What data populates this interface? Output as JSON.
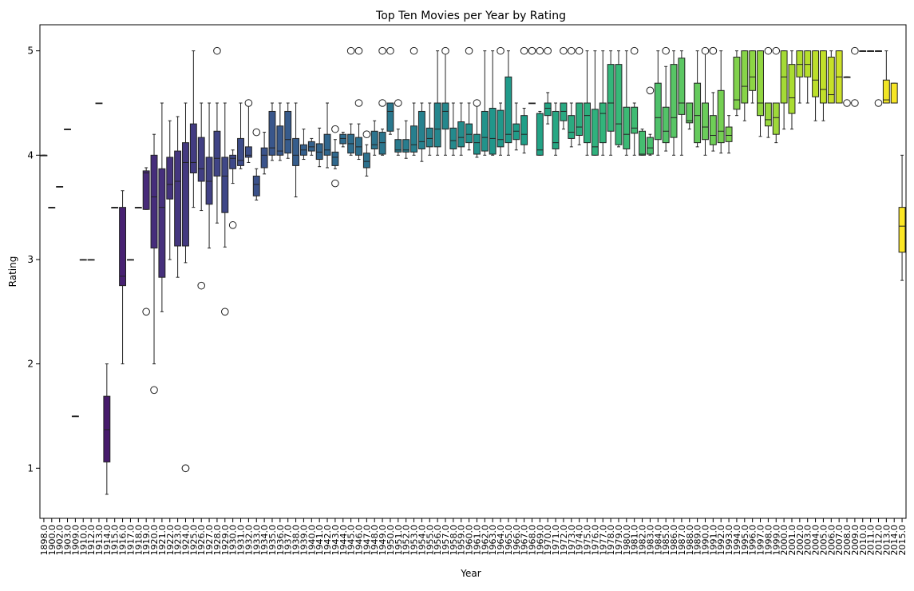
{
  "chart_data": {
    "type": "box",
    "title": "Top Ten Movies per Year by Rating",
    "xlabel": "Year",
    "ylabel": "Rating",
    "ylim": [
      0.52,
      5.25
    ],
    "yticks": [
      1,
      2,
      3,
      4,
      5
    ],
    "palette": "viridis",
    "categories": [
      "1898.0",
      "1900.0",
      "1902.0",
      "1903.0",
      "1909.0",
      "1910.0",
      "1912.0",
      "1913.0",
      "1914.0",
      "1915.0",
      "1916.0",
      "1917.0",
      "1918.0",
      "1919.0",
      "1920.0",
      "1921.0",
      "1922.0",
      "1923.0",
      "1924.0",
      "1925.0",
      "1926.0",
      "1927.0",
      "1928.0",
      "1929.0",
      "1930.0",
      "1931.0",
      "1932.0",
      "1933.0",
      "1934.0",
      "1935.0",
      "1936.0",
      "1937.0",
      "1938.0",
      "1939.0",
      "1940.0",
      "1941.0",
      "1942.0",
      "1943.0",
      "1944.0",
      "1945.0",
      "1946.0",
      "1947.0",
      "1948.0",
      "1949.0",
      "1950.0",
      "1951.0",
      "1952.0",
      "1953.0",
      "1954.0",
      "1955.0",
      "1956.0",
      "1957.0",
      "1958.0",
      "1959.0",
      "1960.0",
      "1961.0",
      "1962.0",
      "1963.0",
      "1964.0",
      "1965.0",
      "1966.0",
      "1967.0",
      "1968.0",
      "1969.0",
      "1970.0",
      "1971.0",
      "1972.0",
      "1973.0",
      "1974.0",
      "1975.0",
      "1976.0",
      "1977.0",
      "1978.0",
      "1979.0",
      "1980.0",
      "1981.0",
      "1982.0",
      "1983.0",
      "1984.0",
      "1985.0",
      "1986.0",
      "1987.0",
      "1988.0",
      "1989.0",
      "1990.0",
      "1991.0",
      "1992.0",
      "1993.0",
      "1994.0",
      "1995.0",
      "1996.0",
      "1997.0",
      "1998.0",
      "1999.0",
      "2000.0",
      "2001.0",
      "2002.0",
      "2003.0",
      "2004.0",
      "2005.0",
      "2006.0",
      "2007.0",
      "2008.0",
      "2009.0",
      "2010.0",
      "2011.0",
      "2012.0",
      "2013.0",
      "2014.0",
      "2015.0"
    ],
    "boxes": [
      {
        "q1": 4.0,
        "med": 4.0,
        "q3": 4.0,
        "wlo": 4.0,
        "whi": 4.0,
        "fliers": []
      },
      {
        "q1": 3.5,
        "med": 3.5,
        "q3": 3.5,
        "wlo": 3.5,
        "whi": 3.5,
        "fliers": []
      },
      {
        "q1": 3.7,
        "med": 3.7,
        "q3": 3.7,
        "wlo": 3.7,
        "whi": 3.7,
        "fliers": []
      },
      {
        "q1": 4.25,
        "med": 4.25,
        "q3": 4.25,
        "wlo": 4.25,
        "whi": 4.25,
        "fliers": []
      },
      {
        "q1": 1.5,
        "med": 1.5,
        "q3": 1.5,
        "wlo": 1.5,
        "whi": 1.5,
        "fliers": []
      },
      {
        "q1": 3.0,
        "med": 3.0,
        "q3": 3.0,
        "wlo": 3.0,
        "whi": 3.0,
        "fliers": []
      },
      {
        "q1": 3.0,
        "med": 3.0,
        "q3": 3.0,
        "wlo": 3.0,
        "whi": 3.0,
        "fliers": []
      },
      {
        "q1": 4.5,
        "med": 4.5,
        "q3": 4.5,
        "wlo": 4.5,
        "whi": 4.5,
        "fliers": []
      },
      {
        "q1": 1.06,
        "med": 1.37,
        "q3": 1.69,
        "wlo": 0.75,
        "whi": 2.0,
        "fliers": []
      },
      {
        "q1": 3.5,
        "med": 3.5,
        "q3": 3.5,
        "wlo": 3.5,
        "whi": 3.5,
        "fliers": []
      },
      {
        "q1": 2.75,
        "med": 2.84,
        "q3": 3.5,
        "wlo": 2.0,
        "whi": 3.66,
        "fliers": []
      },
      {
        "q1": 3.0,
        "med": 3.0,
        "q3": 3.0,
        "wlo": 3.0,
        "whi": 3.0,
        "fliers": []
      },
      {
        "q1": 3.5,
        "med": 3.5,
        "q3": 3.5,
        "wlo": 3.5,
        "whi": 3.5,
        "fliers": []
      },
      {
        "q1": 3.48,
        "med": 3.83,
        "q3": 3.85,
        "wlo": 3.48,
        "whi": 3.88,
        "fliers": [
          2.5
        ]
      },
      {
        "q1": 3.11,
        "med": 3.6,
        "q3": 4.0,
        "wlo": 2.0,
        "whi": 4.2,
        "fliers": [
          1.75
        ]
      },
      {
        "q1": 2.83,
        "med": 3.5,
        "q3": 3.87,
        "wlo": 2.5,
        "whi": 4.5,
        "fliers": []
      },
      {
        "q1": 3.58,
        "med": 3.72,
        "q3": 3.98,
        "wlo": 3.0,
        "whi": 4.33,
        "fliers": []
      },
      {
        "q1": 3.13,
        "med": 3.75,
        "q3": 4.04,
        "wlo": 2.83,
        "whi": 4.37,
        "fliers": []
      },
      {
        "q1": 3.13,
        "med": 3.93,
        "q3": 4.12,
        "wlo": 2.97,
        "whi": 4.5,
        "fliers": [
          1.0,
          1.0
        ]
      },
      {
        "q1": 3.83,
        "med": 3.93,
        "q3": 4.3,
        "wlo": 3.5,
        "whi": 5.0,
        "fliers": []
      },
      {
        "q1": 3.75,
        "med": 3.87,
        "q3": 4.17,
        "wlo": 3.47,
        "whi": 4.5,
        "fliers": [
          2.75
        ]
      },
      {
        "q1": 3.53,
        "med": 3.75,
        "q3": 3.98,
        "wlo": 3.11,
        "whi": 4.5,
        "fliers": []
      },
      {
        "q1": 3.8,
        "med": 3.97,
        "q3": 4.23,
        "wlo": 3.35,
        "whi": 4.5,
        "fliers": [
          5.0
        ]
      },
      {
        "q1": 3.45,
        "med": 3.8,
        "q3": 3.98,
        "wlo": 3.12,
        "whi": 4.5,
        "fliers": [
          2.5
        ]
      },
      {
        "q1": 3.87,
        "med": 3.97,
        "q3": 4.0,
        "wlo": 3.73,
        "whi": 4.05,
        "fliers": [
          3.33
        ]
      },
      {
        "q1": 3.9,
        "med": 3.95,
        "q3": 4.16,
        "wlo": 3.87,
        "whi": 4.5,
        "fliers": []
      },
      {
        "q1": 3.98,
        "med": 4.0,
        "q3": 4.08,
        "wlo": 3.93,
        "whi": 4.5,
        "fliers": [
          4.5
        ]
      },
      {
        "q1": 3.61,
        "med": 3.72,
        "q3": 3.8,
        "wlo": 3.57,
        "whi": 3.87,
        "fliers": [
          4.22
        ]
      },
      {
        "q1": 3.88,
        "med": 4.0,
        "q3": 4.07,
        "wlo": 3.82,
        "whi": 4.22,
        "fliers": []
      },
      {
        "q1": 4.0,
        "med": 4.07,
        "q3": 4.42,
        "wlo": 3.95,
        "whi": 4.5,
        "fliers": []
      },
      {
        "q1": 4.0,
        "med": 4.04,
        "q3": 4.28,
        "wlo": 3.95,
        "whi": 4.5,
        "fliers": []
      },
      {
        "q1": 4.02,
        "med": 4.15,
        "q3": 4.42,
        "wlo": 3.97,
        "whi": 4.5,
        "fliers": []
      },
      {
        "q1": 3.9,
        "med": 4.0,
        "q3": 4.16,
        "wlo": 3.6,
        "whi": 4.5,
        "fliers": []
      },
      {
        "q1": 4.0,
        "med": 4.05,
        "q3": 4.1,
        "wlo": 3.96,
        "whi": 4.25,
        "fliers": []
      },
      {
        "q1": 4.04,
        "med": 4.08,
        "q3": 4.13,
        "wlo": 4.0,
        "whi": 4.16,
        "fliers": []
      },
      {
        "q1": 3.96,
        "med": 4.03,
        "q3": 4.11,
        "wlo": 3.89,
        "whi": 4.26,
        "fliers": []
      },
      {
        "q1": 4.0,
        "med": 4.05,
        "q3": 4.2,
        "wlo": 3.88,
        "whi": 4.5,
        "fliers": []
      },
      {
        "q1": 3.9,
        "med": 3.98,
        "q3": 4.03,
        "wlo": 3.87,
        "whi": 4.15,
        "fliers": [
          3.73,
          4.25
        ]
      },
      {
        "q1": 4.11,
        "med": 4.16,
        "q3": 4.2,
        "wlo": 4.08,
        "whi": 4.22,
        "fliers": []
      },
      {
        "q1": 4.02,
        "med": 4.11,
        "q3": 4.2,
        "wlo": 4.0,
        "whi": 4.3,
        "fliers": [
          5.0
        ]
      },
      {
        "q1": 4.0,
        "med": 4.08,
        "q3": 4.17,
        "wlo": 3.96,
        "whi": 4.3,
        "fliers": [
          4.5,
          5.0
        ]
      },
      {
        "q1": 3.88,
        "med": 3.94,
        "q3": 4.02,
        "wlo": 3.8,
        "whi": 4.1,
        "fliers": [
          4.2
        ]
      },
      {
        "q1": 4.06,
        "med": 4.1,
        "q3": 4.23,
        "wlo": 4.0,
        "whi": 4.33,
        "fliers": []
      },
      {
        "q1": 4.01,
        "med": 4.12,
        "q3": 4.22,
        "wlo": 4.0,
        "whi": 4.25,
        "fliers": [
          4.5,
          5.0
        ]
      },
      {
        "q1": 4.23,
        "med": 4.42,
        "q3": 4.5,
        "wlo": 4.2,
        "whi": 4.5,
        "fliers": [
          5.0
        ]
      },
      {
        "q1": 4.03,
        "med": 4.05,
        "q3": 4.15,
        "wlo": 4.0,
        "whi": 4.25,
        "fliers": [
          4.5
        ]
      },
      {
        "q1": 4.03,
        "med": 4.05,
        "q3": 4.15,
        "wlo": 3.97,
        "whi": 4.33,
        "fliers": []
      },
      {
        "q1": 4.03,
        "med": 4.1,
        "q3": 4.28,
        "wlo": 4.0,
        "whi": 4.5,
        "fliers": [
          5.0
        ]
      },
      {
        "q1": 4.06,
        "med": 4.13,
        "q3": 4.42,
        "wlo": 3.94,
        "whi": 4.5,
        "fliers": []
      },
      {
        "q1": 4.08,
        "med": 4.16,
        "q3": 4.26,
        "wlo": 4.0,
        "whi": 4.5,
        "fliers": []
      },
      {
        "q1": 4.08,
        "med": 4.25,
        "q3": 4.5,
        "wlo": 4.0,
        "whi": 5.0,
        "fliers": []
      },
      {
        "q1": 4.25,
        "med": 4.42,
        "q3": 4.5,
        "wlo": 4.0,
        "whi": 5.0,
        "fliers": [
          5.0
        ]
      },
      {
        "q1": 4.06,
        "med": 4.14,
        "q3": 4.26,
        "wlo": 4.0,
        "whi": 4.5,
        "fliers": []
      },
      {
        "q1": 4.08,
        "med": 4.17,
        "q3": 4.32,
        "wlo": 4.0,
        "whi": 4.5,
        "fliers": []
      },
      {
        "q1": 4.12,
        "med": 4.2,
        "q3": 4.3,
        "wlo": 4.05,
        "whi": 4.5,
        "fliers": [
          5.0
        ]
      },
      {
        "q1": 4.01,
        "med": 4.12,
        "q3": 4.2,
        "wlo": 3.98,
        "whi": 4.5,
        "fliers": [
          4.5
        ]
      },
      {
        "q1": 4.04,
        "med": 4.17,
        "q3": 4.42,
        "wlo": 4.0,
        "whi": 5.0,
        "fliers": []
      },
      {
        "q1": 4.01,
        "med": 4.16,
        "q3": 4.45,
        "wlo": 4.0,
        "whi": 5.0,
        "fliers": []
      },
      {
        "q1": 4.08,
        "med": 4.15,
        "q3": 4.43,
        "wlo": 4.0,
        "whi": 4.5,
        "fliers": [
          5.0
        ]
      },
      {
        "q1": 4.12,
        "med": 4.2,
        "q3": 4.75,
        "wlo": 4.0,
        "whi": 5.0,
        "fliers": []
      },
      {
        "q1": 4.15,
        "med": 4.23,
        "q3": 4.3,
        "wlo": 4.05,
        "whi": 4.5,
        "fliers": []
      },
      {
        "q1": 4.1,
        "med": 4.2,
        "q3": 4.38,
        "wlo": 4.02,
        "whi": 4.45,
        "fliers": [
          5.0
        ]
      },
      {
        "q1": 4.5,
        "med": 4.5,
        "q3": 4.5,
        "wlo": 4.5,
        "whi": 4.5,
        "fliers": [
          5.0,
          5.0
        ]
      },
      {
        "q1": 4.0,
        "med": 4.05,
        "q3": 4.4,
        "wlo": 4.0,
        "whi": 4.42,
        "fliers": [
          5.0
        ]
      },
      {
        "q1": 4.38,
        "med": 4.45,
        "q3": 4.5,
        "wlo": 4.3,
        "whi": 4.6,
        "fliers": [
          5.0
        ]
      },
      {
        "q1": 4.06,
        "med": 4.12,
        "q3": 4.42,
        "wlo": 4.0,
        "whi": 4.5,
        "fliers": []
      },
      {
        "q1": 4.33,
        "med": 4.42,
        "q3": 4.5,
        "wlo": 4.25,
        "whi": 4.5,
        "fliers": [
          5.0
        ]
      },
      {
        "q1": 4.16,
        "med": 4.22,
        "q3": 4.38,
        "wlo": 4.08,
        "whi": 4.5,
        "fliers": [
          5.0
        ]
      },
      {
        "q1": 4.19,
        "med": 4.27,
        "q3": 4.5,
        "wlo": 4.1,
        "whi": 4.5,
        "fliers": [
          5.0
        ]
      },
      {
        "q1": 4.12,
        "med": 4.38,
        "q3": 4.5,
        "wlo": 4.0,
        "whi": 5.0,
        "fliers": []
      },
      {
        "q1": 4.0,
        "med": 4.08,
        "q3": 4.44,
        "wlo": 4.0,
        "whi": 5.0,
        "fliers": []
      },
      {
        "q1": 4.12,
        "med": 4.4,
        "q3": 4.5,
        "wlo": 4.0,
        "whi": 5.0,
        "fliers": []
      },
      {
        "q1": 4.23,
        "med": 4.5,
        "q3": 4.87,
        "wlo": 4.0,
        "whi": 5.0,
        "fliers": []
      },
      {
        "q1": 4.1,
        "med": 4.3,
        "q3": 4.87,
        "wlo": 4.08,
        "whi": 5.0,
        "fliers": []
      },
      {
        "q1": 4.06,
        "med": 4.2,
        "q3": 4.46,
        "wlo": 4.0,
        "whi": 5.0,
        "fliers": []
      },
      {
        "q1": 4.21,
        "med": 4.26,
        "q3": 4.46,
        "wlo": 4.0,
        "whi": 4.5,
        "fliers": [
          5.0
        ]
      },
      {
        "q1": 4.0,
        "med": 4.01,
        "q3": 4.23,
        "wlo": 4.0,
        "whi": 4.25,
        "fliers": []
      },
      {
        "q1": 4.01,
        "med": 4.07,
        "q3": 4.17,
        "wlo": 4.0,
        "whi": 4.2,
        "fliers": [
          4.62
        ]
      },
      {
        "q1": 4.15,
        "med": 4.36,
        "q3": 4.69,
        "wlo": 4.0,
        "whi": 5.0,
        "fliers": []
      },
      {
        "q1": 4.12,
        "med": 4.23,
        "q3": 4.46,
        "wlo": 4.04,
        "whi": 4.85,
        "fliers": [
          5.0
        ]
      },
      {
        "q1": 4.17,
        "med": 4.36,
        "q3": 4.87,
        "wlo": 4.0,
        "whi": 5.0,
        "fliers": []
      },
      {
        "q1": 4.39,
        "med": 4.5,
        "q3": 4.93,
        "wlo": 4.0,
        "whi": 5.0,
        "fliers": []
      },
      {
        "q1": 4.31,
        "med": 4.33,
        "q3": 4.5,
        "wlo": 4.25,
        "whi": 4.5,
        "fliers": []
      },
      {
        "q1": 4.12,
        "med": 4.38,
        "q3": 4.69,
        "wlo": 4.08,
        "whi": 5.0,
        "fliers": []
      },
      {
        "q1": 4.15,
        "med": 4.27,
        "q3": 4.5,
        "wlo": 4.0,
        "whi": 5.0,
        "fliers": [
          5.0
        ]
      },
      {
        "q1": 4.1,
        "med": 4.19,
        "q3": 4.38,
        "wlo": 4.04,
        "whi": 4.6,
        "fliers": [
          5.0,
          5.0
        ]
      },
      {
        "q1": 4.12,
        "med": 4.23,
        "q3": 4.62,
        "wlo": 4.02,
        "whi": 5.0,
        "fliers": []
      },
      {
        "q1": 4.13,
        "med": 4.19,
        "q3": 4.27,
        "wlo": 4.02,
        "whi": 4.38,
        "fliers": []
      },
      {
        "q1": 4.44,
        "med": 4.53,
        "q3": 4.94,
        "wlo": 4.38,
        "whi": 5.0,
        "fliers": []
      },
      {
        "q1": 4.5,
        "med": 4.66,
        "q3": 5.0,
        "wlo": 4.33,
        "whi": 5.0,
        "fliers": []
      },
      {
        "q1": 4.62,
        "med": 4.75,
        "q3": 5.0,
        "wlo": 4.5,
        "whi": 5.0,
        "fliers": []
      },
      {
        "q1": 4.38,
        "med": 4.5,
        "q3": 5.0,
        "wlo": 4.18,
        "whi": 5.0,
        "fliers": []
      },
      {
        "q1": 4.28,
        "med": 4.34,
        "q3": 4.5,
        "wlo": 4.17,
        "whi": 4.5,
        "fliers": [
          5.0
        ]
      },
      {
        "q1": 4.2,
        "med": 4.36,
        "q3": 4.5,
        "wlo": 4.12,
        "whi": 4.5,
        "fliers": [
          5.0
        ]
      },
      {
        "q1": 4.5,
        "med": 4.75,
        "q3": 5.0,
        "wlo": 4.25,
        "whi": 5.0,
        "fliers": []
      },
      {
        "q1": 4.4,
        "med": 4.55,
        "q3": 4.87,
        "wlo": 4.25,
        "whi": 5.0,
        "fliers": []
      },
      {
        "q1": 4.75,
        "med": 4.87,
        "q3": 5.0,
        "wlo": 4.5,
        "whi": 5.0,
        "fliers": []
      },
      {
        "q1": 4.75,
        "med": 4.87,
        "q3": 5.0,
        "wlo": 4.5,
        "whi": 5.0,
        "fliers": []
      },
      {
        "q1": 4.56,
        "med": 4.72,
        "q3": 5.0,
        "wlo": 4.33,
        "whi": 5.0,
        "fliers": []
      },
      {
        "q1": 4.5,
        "med": 4.63,
        "q3": 5.0,
        "wlo": 4.33,
        "whi": 5.0,
        "fliers": []
      },
      {
        "q1": 4.5,
        "med": 4.58,
        "q3": 4.94,
        "wlo": 4.5,
        "whi": 5.0,
        "fliers": []
      },
      {
        "q1": 4.5,
        "med": 4.75,
        "q3": 5.0,
        "wlo": 4.5,
        "whi": 5.0,
        "fliers": []
      },
      {
        "q1": 4.75,
        "med": 4.75,
        "q3": 4.75,
        "wlo": 4.75,
        "whi": 4.75,
        "fliers": [
          4.5
        ]
      },
      {
        "q1": 5.0,
        "med": 5.0,
        "q3": 5.0,
        "wlo": 5.0,
        "whi": 5.0,
        "fliers": [
          4.5,
          5.0
        ]
      },
      {
        "q1": 5.0,
        "med": 5.0,
        "q3": 5.0,
        "wlo": 5.0,
        "whi": 5.0,
        "fliers": []
      },
      {
        "q1": 5.0,
        "med": 5.0,
        "q3": 5.0,
        "wlo": 5.0,
        "whi": 5.0,
        "fliers": []
      },
      {
        "q1": 5.0,
        "med": 5.0,
        "q3": 5.0,
        "wlo": 5.0,
        "whi": 5.0,
        "fliers": [
          4.5
        ]
      },
      {
        "q1": 4.5,
        "med": 4.53,
        "q3": 4.72,
        "wlo": 4.5,
        "whi": 5.0,
        "fliers": []
      },
      {
        "q1": 4.5,
        "med": 4.5,
        "q3": 4.69,
        "wlo": 4.5,
        "whi": 4.69,
        "fliers": []
      },
      {
        "q1": 3.07,
        "med": 3.32,
        "q3": 3.5,
        "wlo": 2.8,
        "whi": 4.0,
        "fliers": []
      }
    ]
  }
}
